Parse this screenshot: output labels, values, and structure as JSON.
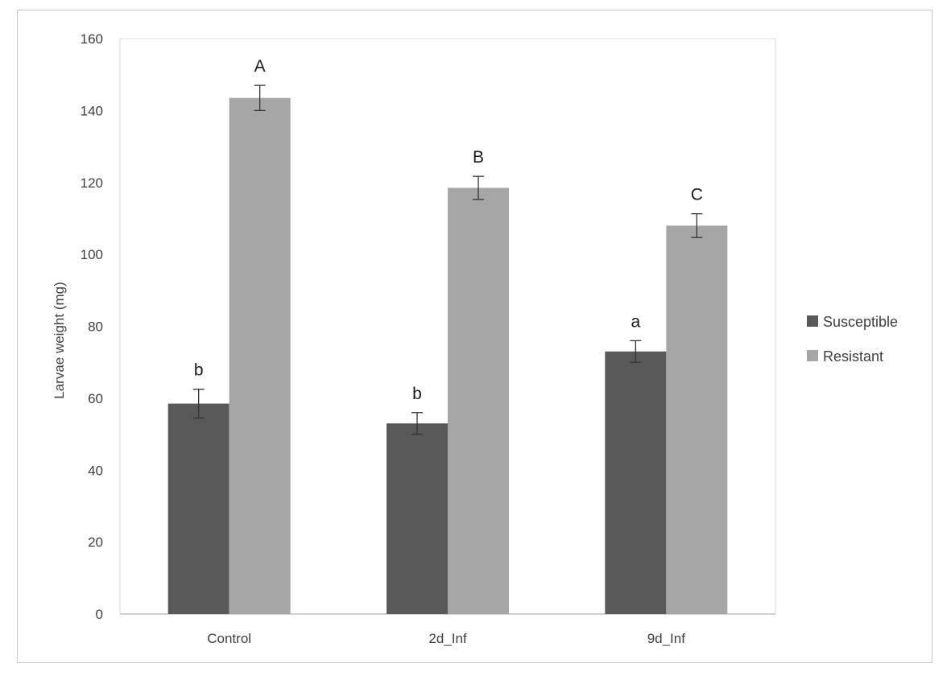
{
  "chart_data": {
    "type": "bar",
    "title": "",
    "xlabel": "",
    "ylabel": "Larvae weight (mg)",
    "categories": [
      "Control",
      "2d_Inf",
      "9d_Inf"
    ],
    "ylim": [
      0,
      160
    ],
    "yticks": [
      0,
      20,
      40,
      60,
      80,
      100,
      120,
      140,
      160
    ],
    "grid": false,
    "legend_position": "right",
    "series": [
      {
        "name": "Susceptible",
        "color": "#595959",
        "values": [
          58.5,
          53,
          73
        ],
        "errors": [
          4,
          3,
          3
        ],
        "labels": [
          "b",
          "b",
          "a"
        ]
      },
      {
        "name": "Resistant",
        "color": "#a6a6a6",
        "values": [
          143.5,
          118.5,
          108
        ],
        "errors": [
          3.5,
          3.2,
          3.3
        ],
        "labels": [
          "A",
          "B",
          "C"
        ]
      }
    ]
  }
}
